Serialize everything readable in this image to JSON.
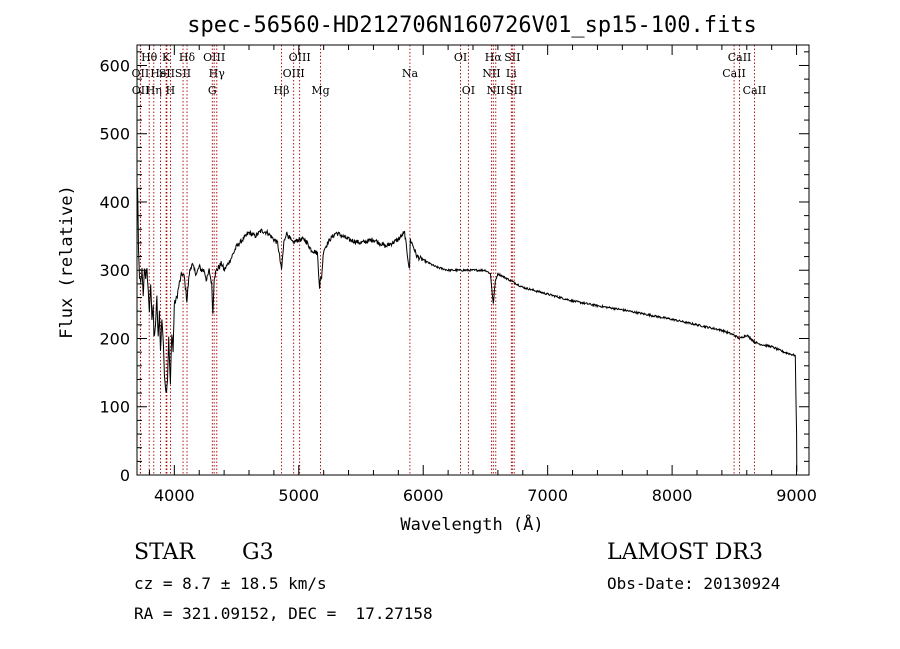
{
  "chart_data": {
    "type": "line",
    "title": "spec-56560-HD212706N160726V01_sp15-100.fits",
    "xlabel": "Wavelength (Å)",
    "ylabel": "Flux (relative)",
    "xlim": [
      3700,
      9100
    ],
    "ylim": [
      0,
      630
    ],
    "xticks": [
      4000,
      5000,
      6000,
      7000,
      8000,
      9000
    ],
    "yticks": [
      0,
      100,
      200,
      300,
      400,
      500,
      600
    ],
    "series": [
      {
        "name": "spectrum",
        "x": [
          3700,
          3705,
          3712,
          3720,
          3730,
          3740,
          3750,
          3760,
          3770,
          3780,
          3790,
          3800,
          3810,
          3820,
          3830,
          3836,
          3845,
          3860,
          3870,
          3880,
          3889,
          3900,
          3910,
          3920,
          3933,
          3945,
          3955,
          3968,
          3980,
          3990,
          4000,
          4020,
          4040,
          4060,
          4080,
          4101,
          4120,
          4140,
          4160,
          4180,
          4200,
          4220,
          4240,
          4260,
          4280,
          4300,
          4310,
          4320,
          4340,
          4360,
          4380,
          4400,
          4450,
          4500,
          4550,
          4600,
          4650,
          4700,
          4750,
          4800,
          4830,
          4861,
          4880,
          4900,
          4950,
          5000,
          5050,
          5100,
          5150,
          5167,
          5172,
          5183,
          5200,
          5250,
          5300,
          5400,
          5500,
          5600,
          5700,
          5800,
          5850,
          5890,
          5896,
          5920,
          5950,
          6000,
          6100,
          6200,
          6300,
          6400,
          6500,
          6540,
          6563,
          6580,
          6600,
          6700,
          6800,
          7000,
          7200,
          7400,
          7600,
          7800,
          8000,
          8200,
          8400,
          8498,
          8542,
          8600,
          8662,
          8700,
          8800,
          8900,
          8990,
          9000,
          9002
        ],
        "values": [
          370,
          420,
          330,
          290,
          280,
          300,
          260,
          305,
          290,
          300,
          270,
          240,
          280,
          230,
          250,
          200,
          210,
          260,
          200,
          240,
          180,
          230,
          200,
          150,
          120,
          140,
          200,
          130,
          210,
          180,
          250,
          260,
          280,
          295,
          290,
          255,
          295,
          310,
          300,
          295,
          305,
          300,
          300,
          285,
          300,
          280,
          235,
          290,
          300,
          305,
          310,
          300,
          315,
          335,
          345,
          355,
          350,
          358,
          355,
          345,
          340,
          300,
          340,
          355,
          340,
          345,
          345,
          330,
          325,
          275,
          285,
          290,
          330,
          345,
          355,
          345,
          340,
          345,
          335,
          345,
          355,
          300,
          345,
          335,
          320,
          315,
          305,
          300,
          300,
          300,
          300,
          295,
          250,
          285,
          295,
          285,
          275,
          265,
          255,
          248,
          242,
          235,
          228,
          220,
          212,
          205,
          200,
          205,
          195,
          192,
          188,
          180,
          175,
          60,
          5
        ]
      }
    ],
    "lines": [
      {
        "name": "OII",
        "wavelength": 3727,
        "row": 2
      },
      {
        "name": "OII",
        "wavelength": 3729,
        "row": 3
      },
      {
        "name": "Hθ",
        "wavelength": 3798,
        "row": 1
      },
      {
        "name": "Hη",
        "wavelength": 3835,
        "row": 3
      },
      {
        "name": "HeI",
        "wavelength": 3889,
        "row": 2
      },
      {
        "name": "K",
        "wavelength": 3934,
        "row": 1
      },
      {
        "name": "SII",
        "wavelength": 3940,
        "row": 2
      },
      {
        "name": "H",
        "wavelength": 3969,
        "row": 3
      },
      {
        "name": "Hδ",
        "wavelength": 4102,
        "row": 1
      },
      {
        "name": "SII",
        "wavelength": 4070,
        "row": 2
      },
      {
        "name": "OIII",
        "wavelength": 4320,
        "row": 1
      },
      {
        "name": "Hγ",
        "wavelength": 4341,
        "row": 2
      },
      {
        "name": "G",
        "wavelength": 4305,
        "row": 3
      },
      {
        "name": "Hβ",
        "wavelength": 4861,
        "row": 3
      },
      {
        "name": "OIII",
        "wavelength": 4959,
        "row": 2
      },
      {
        "name": "OIII",
        "wavelength": 5007,
        "row": 1
      },
      {
        "name": "Mg",
        "wavelength": 5175,
        "row": 3
      },
      {
        "name": "Na",
        "wavelength": 5893,
        "row": 2
      },
      {
        "name": "OI",
        "wavelength": 6300,
        "row": 1
      },
      {
        "name": "OI",
        "wavelength": 6363,
        "row": 3
      },
      {
        "name": "NII",
        "wavelength": 6548,
        "row": 2
      },
      {
        "name": "Hα",
        "wavelength": 6563,
        "row": 1
      },
      {
        "name": "NII",
        "wavelength": 6583,
        "row": 3
      },
      {
        "name": "SII",
        "wavelength": 6716,
        "row": 1
      },
      {
        "name": "Li",
        "wavelength": 6708,
        "row": 2
      },
      {
        "name": "SII",
        "wavelength": 6731,
        "row": 3
      },
      {
        "name": "CaII",
        "wavelength": 8498,
        "row": 2
      },
      {
        "name": "CaII",
        "wavelength": 8542,
        "row": 1
      },
      {
        "name": "CaII",
        "wavelength": 8662,
        "row": 3
      }
    ],
    "colors": {
      "spectrum": "#000000",
      "line_marker": "#aa0000",
      "axes": "#000000"
    }
  },
  "info": {
    "object_class": "STAR",
    "subclass": "G3",
    "survey": "LAMOST DR3",
    "redshift": "cz = 8.7 ± 18.5 km/s",
    "obs_date": "Obs-Date: 20130924",
    "coords": "RA = 321.09152, DEC =  17.27158"
  }
}
